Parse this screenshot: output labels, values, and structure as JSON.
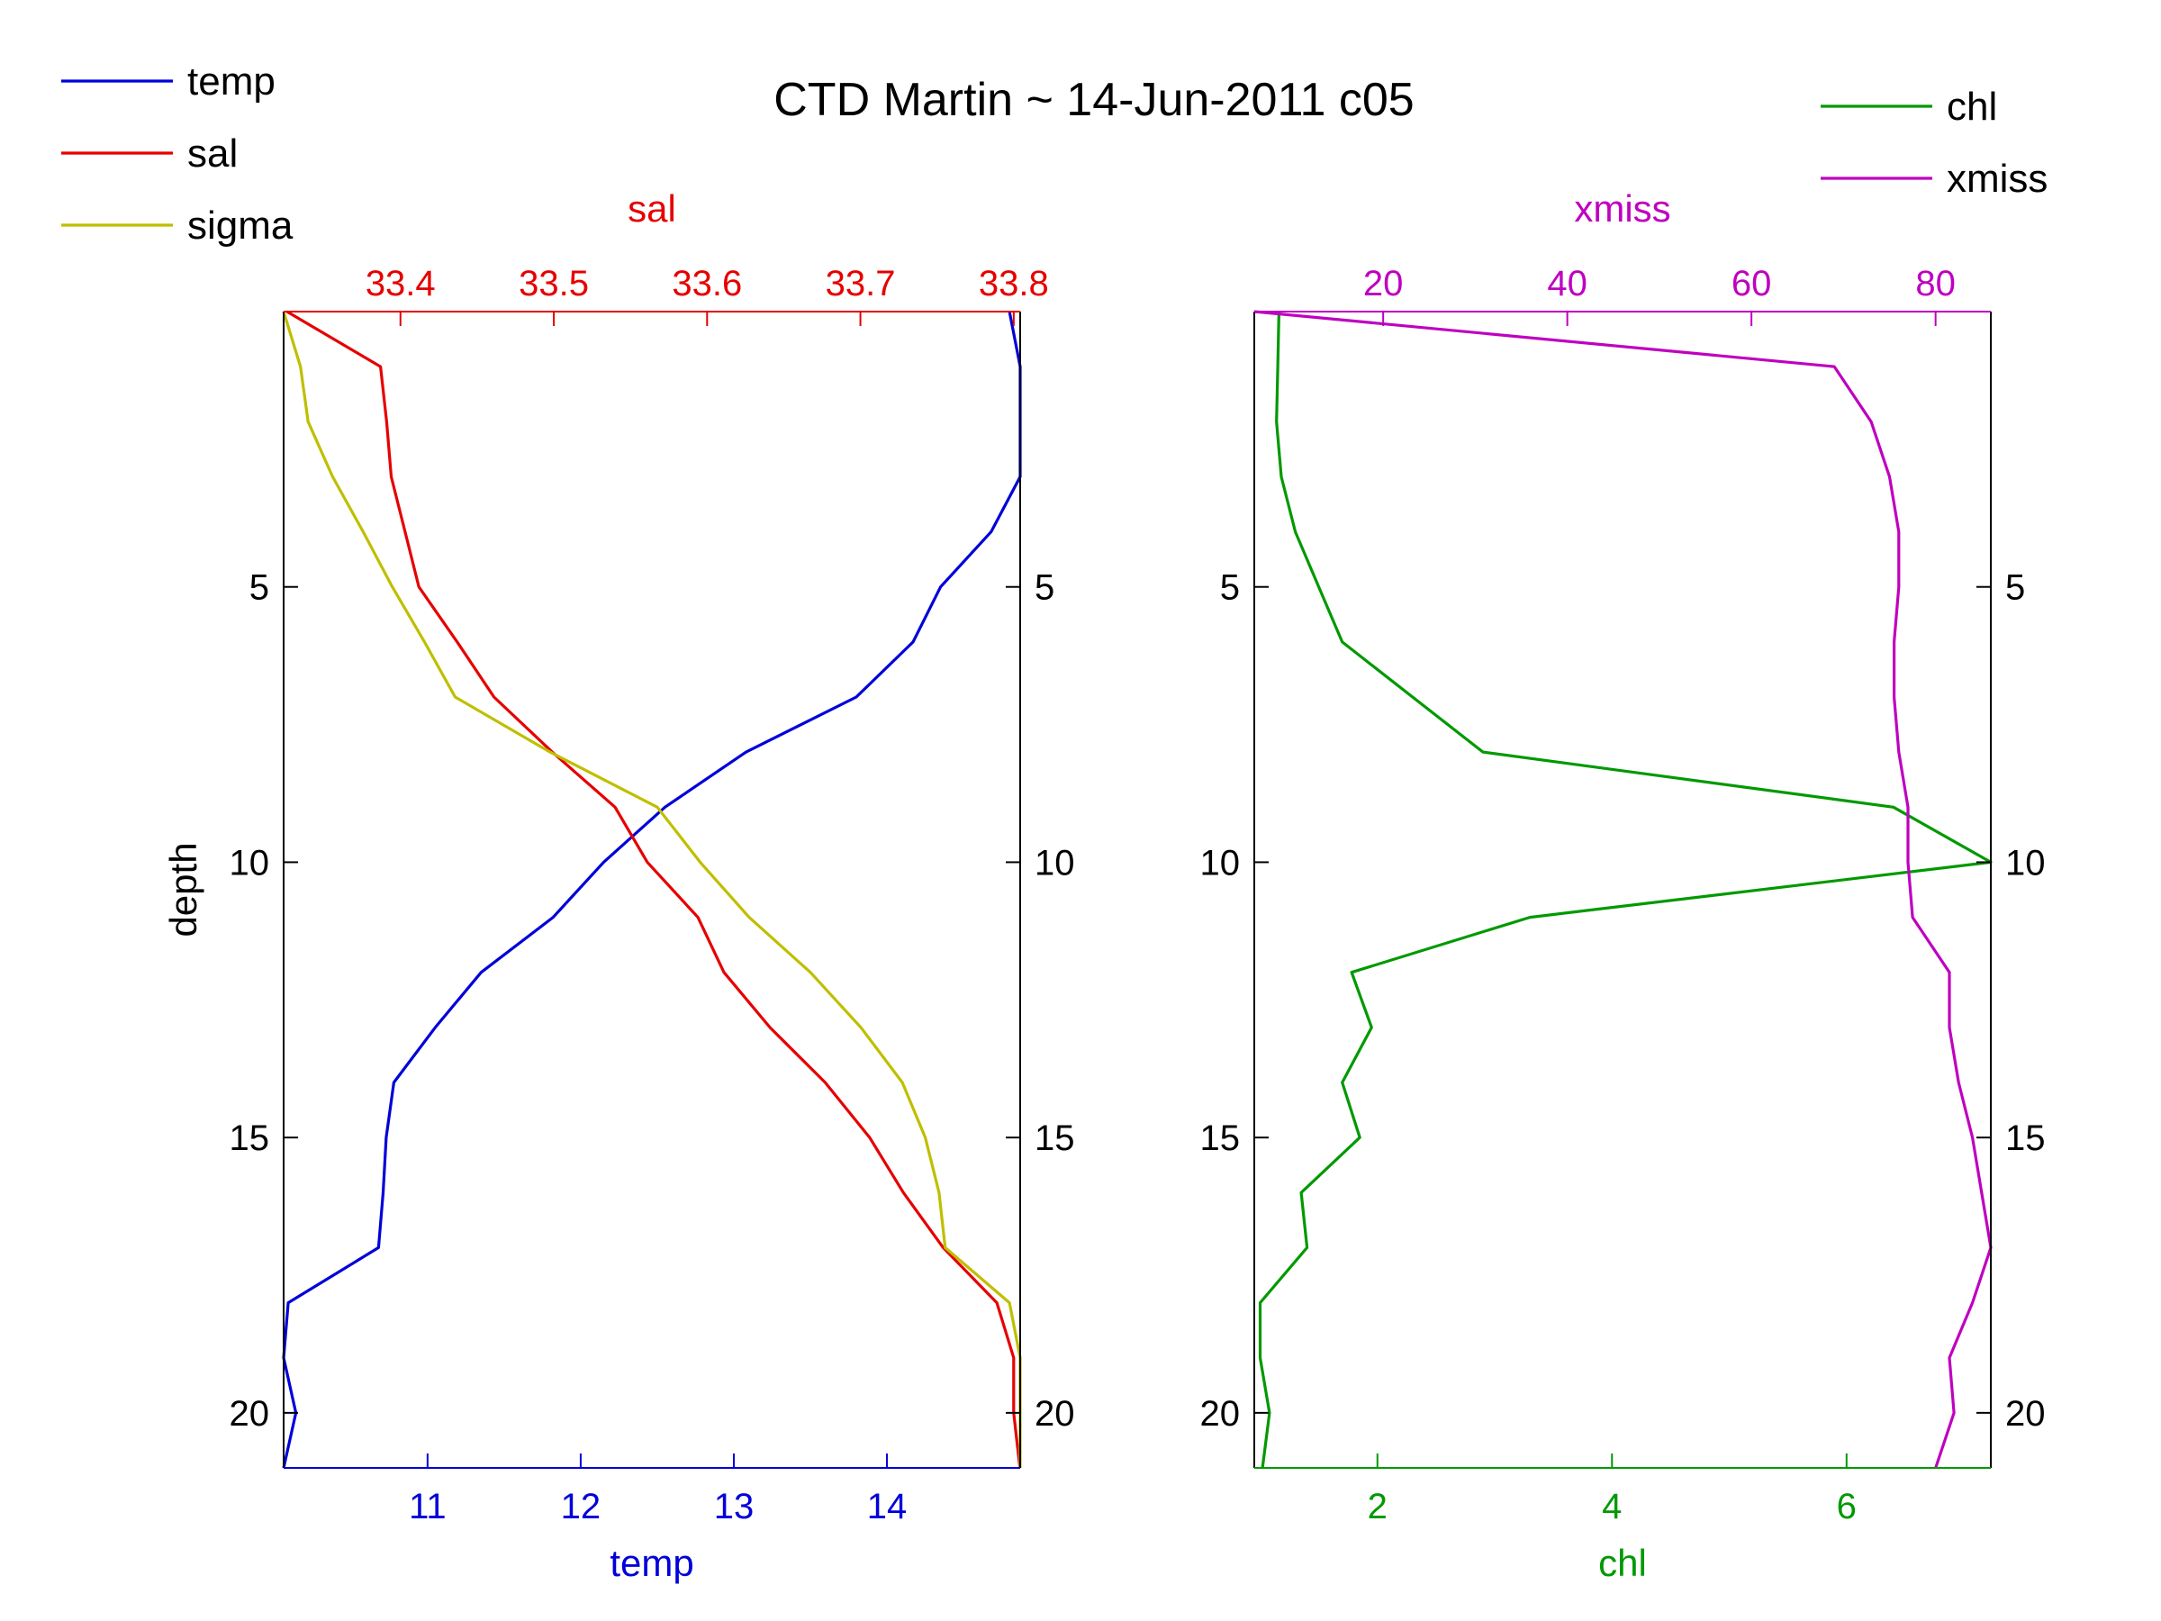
{
  "title": "CTD Martin ~ 14-Jun-2011 c05",
  "colors": {
    "temp": "#0000d9",
    "sal": "#e60000",
    "sigma": "#bfbf00",
    "chl": "#009900",
    "xmiss": "#bf00bf",
    "axes": "#000000"
  },
  "legend_left": [
    {
      "name": "temp",
      "color_key": "temp"
    },
    {
      "name": "sal",
      "color_key": "sal"
    },
    {
      "name": "sigma",
      "color_key": "sigma"
    }
  ],
  "legend_right": [
    {
      "name": "chl",
      "color_key": "chl"
    },
    {
      "name": "xmiss",
      "color_key": "xmiss"
    }
  ],
  "chart_data": [
    {
      "type": "line",
      "ylabel": "depth",
      "y_reversed": true,
      "ylim": [
        0,
        21
      ],
      "yticks": [
        5,
        10,
        15,
        20
      ],
      "bottom_axis": {
        "label": "temp",
        "color_key": "temp",
        "lim": [
          10.06,
          14.87
        ],
        "ticks": [
          11,
          12,
          13,
          14
        ]
      },
      "top_axis": {
        "label": "sal",
        "color_key": "sal",
        "lim": [
          33.3238,
          33.8042
        ],
        "ticks": [
          33.4,
          33.5,
          33.6,
          33.7,
          33.8
        ]
      },
      "series": [
        {
          "name": "temp",
          "axis": "bottom",
          "color_key": "temp",
          "depth": [
            0,
            1,
            2,
            3,
            4,
            5,
            6,
            7,
            8,
            9,
            10,
            11,
            12,
            13,
            14,
            15,
            16,
            17,
            18,
            19,
            20,
            21
          ],
          "values": [
            14.8,
            14.87,
            14.87,
            14.87,
            14.68,
            14.35,
            14.17,
            13.8,
            13.08,
            12.55,
            12.15,
            11.82,
            11.35,
            11.05,
            10.78,
            10.73,
            10.71,
            10.68,
            10.09,
            10.06,
            10.14,
            10.06
          ]
        },
        {
          "name": "sal",
          "axis": "top",
          "color_key": "sal",
          "depth": [
            0,
            1,
            2,
            3,
            4,
            5,
            6,
            7,
            8,
            9,
            10,
            11,
            12,
            13,
            14,
            15,
            16,
            17,
            18,
            19,
            20,
            21
          ],
          "values": [
            33.326,
            33.387,
            33.391,
            33.394,
            33.403,
            33.412,
            33.437,
            33.461,
            33.499,
            33.54,
            33.561,
            33.594,
            33.611,
            33.641,
            33.677,
            33.706,
            33.728,
            33.754,
            33.789,
            33.8,
            33.8,
            33.804
          ]
        },
        {
          "name": "sigma",
          "axis": "bottom",
          "color_key": "sigma",
          "depth": [
            0,
            1,
            2,
            3,
            4,
            5,
            6,
            7,
            8,
            9,
            10,
            11,
            12,
            13,
            14,
            15,
            16,
            17,
            18,
            19,
            20,
            21
          ],
          "values": [
            10.06,
            10.17,
            10.22,
            10.38,
            10.58,
            10.77,
            10.98,
            11.18,
            11.8,
            12.5,
            12.78,
            13.1,
            13.5,
            13.83,
            14.1,
            14.25,
            14.34,
            14.38,
            14.8,
            14.87,
            14.87,
            14.87
          ]
        }
      ]
    },
    {
      "type": "line",
      "ylabel": "",
      "y_reversed": true,
      "ylim": [
        0,
        21
      ],
      "yticks": [
        5,
        10,
        15,
        20
      ],
      "bottom_axis": {
        "label": "chl",
        "color_key": "chl",
        "lim": [
          0.95,
          7.23
        ],
        "ticks": [
          2,
          4,
          6
        ]
      },
      "top_axis": {
        "label": "xmiss",
        "color_key": "xmiss",
        "lim": [
          6,
          86
        ],
        "ticks": [
          20,
          40,
          60,
          80
        ]
      },
      "series": [
        {
          "name": "chl",
          "axis": "bottom",
          "color_key": "chl",
          "depth": [
            0,
            1,
            2,
            3,
            4,
            5,
            6,
            7,
            8,
            9,
            10,
            11,
            12,
            13,
            14,
            15,
            16,
            17,
            18,
            19,
            20,
            21
          ],
          "values": [
            1.16,
            1.15,
            1.14,
            1.18,
            1.3,
            1.5,
            1.7,
            2.3,
            2.9,
            6.4,
            7.23,
            3.3,
            1.78,
            1.95,
            1.7,
            1.85,
            1.35,
            1.4,
            1.0,
            1.0,
            1.08,
            1.02
          ]
        },
        {
          "name": "xmiss",
          "axis": "top",
          "color_key": "xmiss",
          "depth": [
            0,
            1,
            2,
            3,
            4,
            5,
            6,
            7,
            8,
            9,
            10,
            11,
            12,
            13,
            14,
            15,
            16,
            17,
            18,
            19,
            20,
            21
          ],
          "values": [
            6,
            69,
            73,
            75,
            76,
            76,
            75.5,
            75.5,
            76,
            77,
            77,
            77.5,
            81.5,
            81.5,
            82.5,
            84,
            85,
            86,
            84,
            81.5,
            82,
            80
          ]
        }
      ]
    }
  ]
}
